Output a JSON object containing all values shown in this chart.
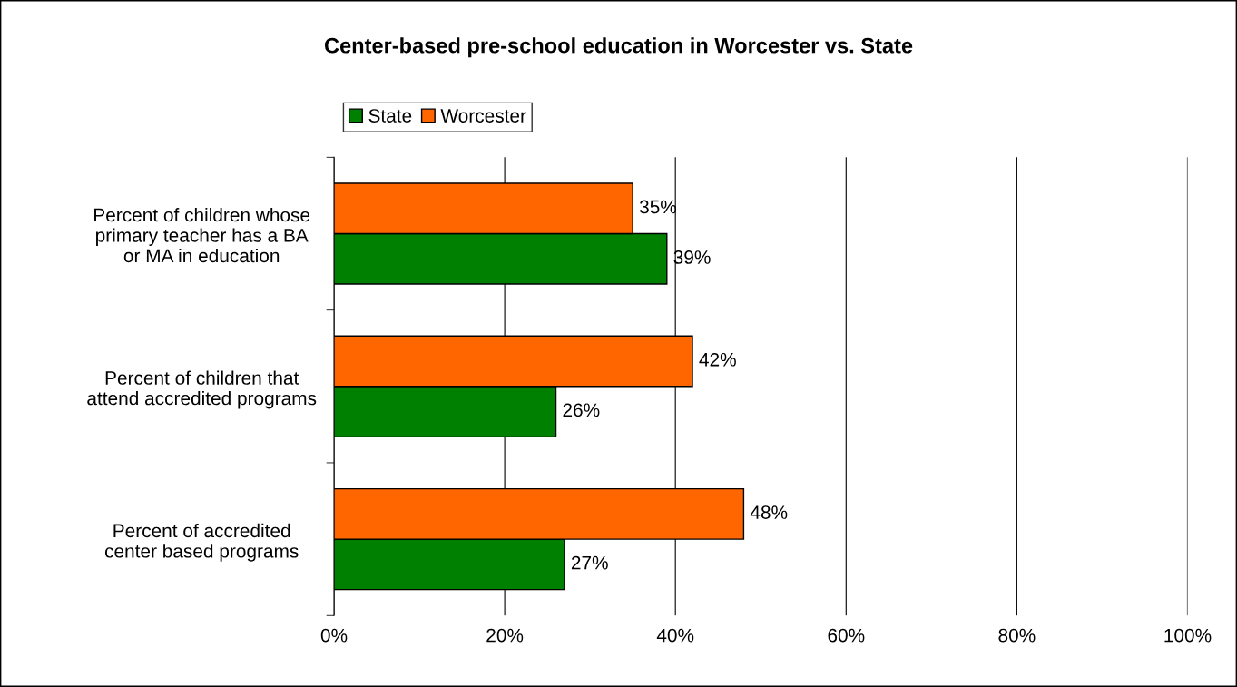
{
  "chart_data": {
    "type": "bar",
    "orientation": "horizontal",
    "title": "Center-based pre-school education in Worcester vs. State",
    "categories": [
      "Percent of children whose\nprimary teacher has a BA\nor MA in education",
      "Percent of children that\nattend accredited programs",
      "Percent of accredited\ncenter based programs"
    ],
    "series": [
      {
        "name": "State",
        "color": "#008000",
        "values": [
          39,
          26,
          27
        ],
        "value_labels": [
          "39%",
          "26%",
          "27%"
        ]
      },
      {
        "name": "Worcester",
        "color": "#ff6600",
        "values": [
          35,
          42,
          48
        ],
        "value_labels": [
          "35%",
          "42%",
          "48%"
        ]
      }
    ],
    "xlim": [
      0,
      100
    ],
    "xticks": [
      {
        "value": 0,
        "label": "0%"
      },
      {
        "value": 20,
        "label": "20%"
      },
      {
        "value": 40,
        "label": "40%"
      },
      {
        "value": 60,
        "label": "60%"
      },
      {
        "value": 80,
        "label": "80%"
      },
      {
        "value": 100,
        "label": "100%"
      }
    ],
    "grid": "x",
    "legend": "top"
  }
}
